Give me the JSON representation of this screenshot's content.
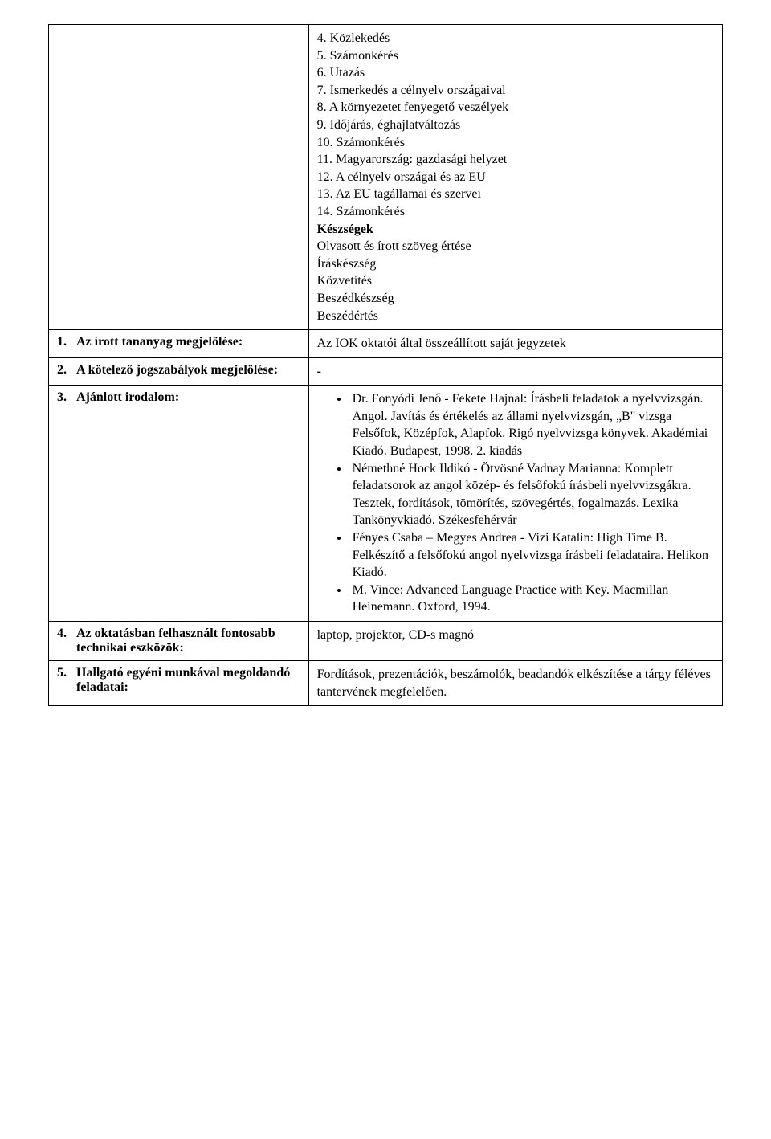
{
  "row0": {
    "items": [
      "4. Közlekedés",
      "5. Számonkérés",
      "6. Utazás",
      "7. Ismerkedés a célnyelv országaival",
      "8. A környezetet fenyegető veszélyek",
      "9. Időjárás, éghajlatváltozás",
      "10. Számonkérés",
      "11. Magyarország: gazdasági helyzet",
      "12. A célnyelv országai és az EU",
      "13. Az EU tagállamai és szervei",
      "14. Számonkérés"
    ],
    "skills_heading": "Készségek",
    "skills": [
      "Olvasott és írott szöveg értése",
      "Íráskészség",
      "Közvetítés",
      "Beszédkészség",
      "Beszédértés"
    ]
  },
  "row1": {
    "num": "1.",
    "label": "Az írott tananyag megjelölése:",
    "content": "Az IOK oktatói által összeállított saját jegyzetek"
  },
  "row2": {
    "num": "2.",
    "label": "A kötelező jogszabályok megjelölése:",
    "content": "-"
  },
  "row3": {
    "num": "3.",
    "label": "Ajánlott irodalom:",
    "bullets": [
      "Dr. Fonyódi Jenő - Fekete Hajnal: Írásbeli feladatok a nyelvvizsgán. Angol. Javítás és értékelés az állami nyelvvizsgán, „B\" vizsga Felsőfok, Középfok, Alapfok. Rigó nyelvvizsga könyvek. Akadémiai Kiadó. Budapest, 1998. 2. kiadás",
      "Némethné Hock Ildikó - Ötvösné Vadnay Marianna: Komplett feladatsorok az angol közép- és felsőfokú írásbeli nyelvvizsgákra. Tesztek, fordítások, tömörítés, szövegértés, fogalmazás. Lexika Tankönyvkiadó. Székesfehérvár",
      "Fényes Csaba – Megyes Andrea - Vizi Katalin: High Time B. Felkészítő a felsőfokú angol nyelvvizsga írásbeli feladataira. Helikon Kiadó.",
      "M. Vince: Advanced Language Practice with Key. Macmillan Heinemann. Oxford, 1994."
    ]
  },
  "row4": {
    "num": "4.",
    "label": "Az oktatásban felhasznált fontosabb technikai eszközök:",
    "content": "laptop, projektor, CD-s magnó"
  },
  "row5": {
    "num": "5.",
    "label": "Hallgató egyéni munkával megoldandó feladatai:",
    "content": "Fordítások, prezentációk, beszámolók, beadandók elkészítése a tárgy féléves tantervének megfelelően."
  }
}
